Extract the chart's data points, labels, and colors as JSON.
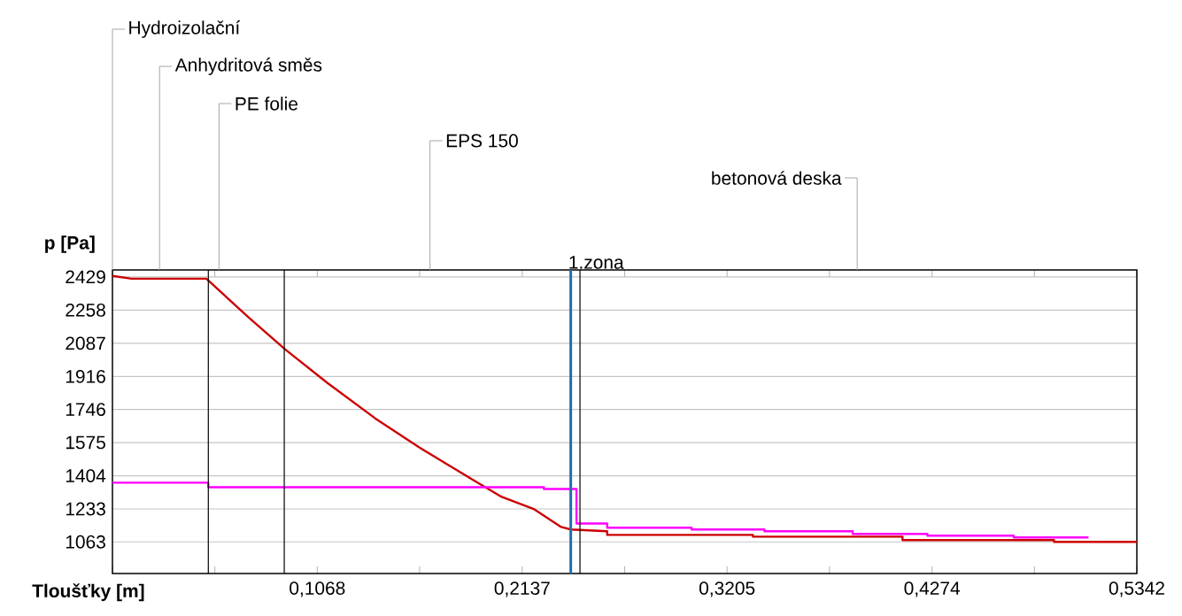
{
  "chart_data": {
    "type": "line",
    "xlabel": "Tloušťky [m]",
    "ylabel": "p [Pa]",
    "xlim": [
      0,
      0.5342
    ],
    "ylim": [
      900,
      2465
    ],
    "xticks": [
      {
        "value": 0,
        "label": null
      },
      {
        "value": 0.0534,
        "label": null
      },
      {
        "value": 0.1068,
        "label": "0,1068"
      },
      {
        "value": 0.1602,
        "label": null
      },
      {
        "value": 0.2137,
        "label": "0,2137"
      },
      {
        "value": 0.2671,
        "label": null
      },
      {
        "value": 0.3205,
        "label": "0,3205"
      },
      {
        "value": 0.3739,
        "label": null
      },
      {
        "value": 0.4274,
        "label": "0,4274"
      },
      {
        "value": 0.4808,
        "label": null
      },
      {
        "value": 0.5342,
        "label": "0,5342"
      }
    ],
    "yticks": [
      2429,
      2258,
      2087,
      1916,
      1746,
      1575,
      1404,
      1233,
      1063
    ],
    "grid": "y",
    "series": [
      {
        "color": "#cc0000",
        "x": [
          0,
          0.01,
          0.049,
          0.071,
          0.09,
          0.112,
          0.137,
          0.16,
          0.189,
          0.203,
          0.22,
          0.234,
          0.239,
          0.258,
          0.258,
          0.334,
          0.334,
          0.412,
          0.412,
          0.491,
          0.491,
          0.5342
        ],
        "values": [
          2434,
          2420,
          2420,
          2220,
          2056,
          1883,
          1700,
          1550,
          1377,
          1295,
          1231,
          1140,
          1127,
          1118,
          1099,
          1099,
          1090,
          1090,
          1072,
          1072,
          1063,
          1063
        ]
      },
      {
        "color": "#ff00ff",
        "x": [
          0,
          0.05,
          0.05,
          0.225,
          0.225,
          0.242,
          0.242,
          0.258,
          0.258,
          0.302,
          0.302,
          0.34,
          0.34,
          0.386,
          0.386,
          0.425,
          0.425,
          0.47,
          0.47,
          0.509
        ],
        "values": [
          1368,
          1368,
          1345,
          1345,
          1336,
          1336,
          1158,
          1158,
          1136,
          1136,
          1127,
          1127,
          1118,
          1118,
          1104,
          1104,
          1095,
          1095,
          1086,
          1086
        ]
      }
    ],
    "ref_lines": [
      {
        "axis": "x",
        "value": 0.05,
        "color": "#000000"
      },
      {
        "axis": "x",
        "value": 0.0896,
        "color": "#000000"
      },
      {
        "axis": "x",
        "value": 0.2438,
        "color": "#000000"
      },
      {
        "axis": "x",
        "value": 0.239,
        "color": "#1f6fb0",
        "label": "1.zona"
      }
    ],
    "annotations": [
      "Hydroizolační",
      "Anhydritová směs",
      "PE folie",
      "EPS 150",
      "betonová deska"
    ]
  }
}
